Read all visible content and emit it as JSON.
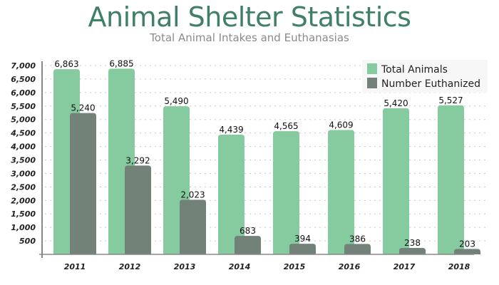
{
  "chart_data": {
    "type": "bar",
    "title": "Animal Shelter Statistics",
    "subtitle": "Total Animal Intakes and Euthanasias",
    "xlabel": "",
    "ylabel": "",
    "categories": [
      "2011",
      "2012",
      "2013",
      "2014",
      "2015",
      "2016",
      "2017",
      "2018"
    ],
    "series": [
      {
        "name": "Total Animals",
        "color": "#86ca9f",
        "values": [
          6863,
          6885,
          5490,
          4439,
          4565,
          4609,
          5420,
          5527
        ],
        "labels": [
          "6,863",
          "6,885",
          "5,490",
          "4,439",
          "4,565",
          "4,609",
          "5,420",
          "5,527"
        ]
      },
      {
        "name": "Number Euthanized",
        "color": "#728279",
        "values": [
          5240,
          3292,
          2023,
          683,
          394,
          386,
          238,
          203
        ],
        "labels": [
          "5,240",
          "3,292",
          "2,023",
          "683",
          "394",
          "386",
          "238",
          "203"
        ]
      }
    ],
    "ylim": [
      0,
      7000
    ],
    "yticks": [
      500,
      1000,
      1500,
      2000,
      2500,
      3000,
      3500,
      4000,
      4500,
      5000,
      5500,
      6000,
      6500,
      7000
    ],
    "ytick_labels": [
      "500",
      "1,000",
      "1,500",
      "2,000",
      "2,500",
      "3,000",
      "3,500",
      "4,000",
      "4,500",
      "5,000",
      "5,500",
      "6,000",
      "6,500",
      "7,000"
    ],
    "grid": true,
    "legend": "top-right"
  }
}
